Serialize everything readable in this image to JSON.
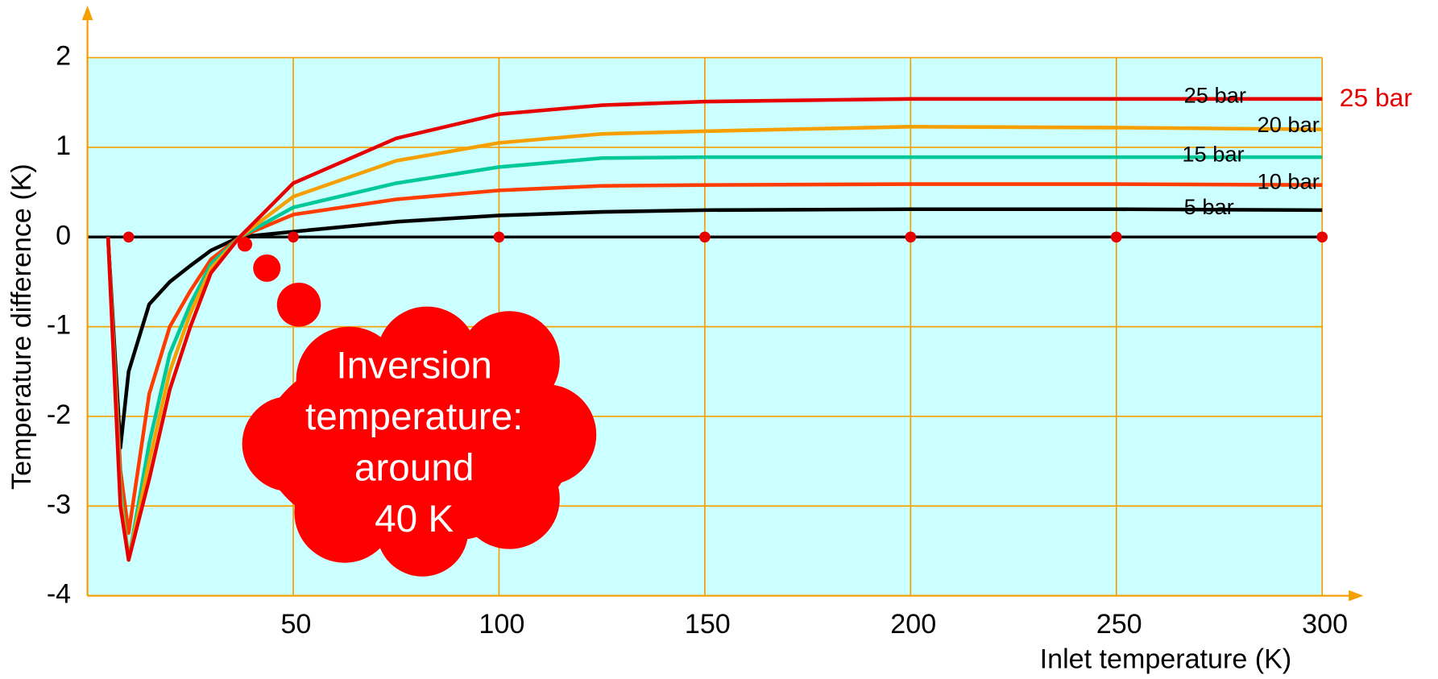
{
  "chart_data": {
    "type": "line",
    "x_label": "Inlet temperature (K)",
    "y_label": "Temperature difference (K)",
    "xlim": [
      0,
      300
    ],
    "ylim": [
      -4,
      2
    ],
    "xticks": [
      50,
      100,
      150,
      200,
      250,
      300
    ],
    "yticks": [
      -4,
      -3,
      -2,
      -1,
      0,
      1,
      2
    ],
    "grid": true,
    "x": [
      5,
      8,
      10,
      15,
      20,
      25,
      30,
      37,
      50,
      75,
      100,
      125,
      150,
      200,
      250,
      300
    ],
    "series": [
      {
        "name": "5 bar",
        "color": "#000000",
        "values": [
          0,
          -2.35,
          -1.5,
          -0.75,
          -0.5,
          -0.32,
          -0.15,
          0,
          0.06,
          0.17,
          0.24,
          0.28,
          0.3,
          0.31,
          0.31,
          0.3
        ]
      },
      {
        "name": "10 bar",
        "color": "#ff3c00",
        "values": [
          0,
          -2.6,
          -3.3,
          -1.75,
          -1.0,
          -0.6,
          -0.25,
          0,
          0.25,
          0.42,
          0.52,
          0.57,
          0.58,
          0.59,
          0.59,
          0.58
        ]
      },
      {
        "name": "15 bar",
        "color": "#00c896",
        "values": [
          0,
          -2.8,
          -3.6,
          -2.3,
          -1.3,
          -0.75,
          -0.3,
          0,
          0.33,
          0.6,
          0.78,
          0.88,
          0.89,
          0.89,
          0.89,
          0.89
        ]
      },
      {
        "name": "20 bar",
        "color": "#f5a000",
        "values": [
          0,
          -2.9,
          -3.6,
          -2.5,
          -1.5,
          -0.85,
          -0.35,
          0,
          0.45,
          0.85,
          1.05,
          1.15,
          1.18,
          1.23,
          1.22,
          1.2
        ]
      },
      {
        "name": "25 bar",
        "color": "#e60000",
        "values": [
          0,
          -3.0,
          -3.6,
          -2.7,
          -1.7,
          -1.0,
          -0.4,
          0,
          0.6,
          1.1,
          1.37,
          1.47,
          1.51,
          1.54,
          1.54,
          1.54
        ]
      }
    ],
    "markers": {
      "color": "#e60000",
      "x": [
        10,
        50,
        100,
        150,
        200,
        250,
        300
      ],
      "values": [
        0,
        0,
        0,
        0,
        0,
        0,
        0
      ]
    },
    "annotation": [
      "Inversion",
      "temperature:",
      "around",
      "40 K"
    ]
  }
}
